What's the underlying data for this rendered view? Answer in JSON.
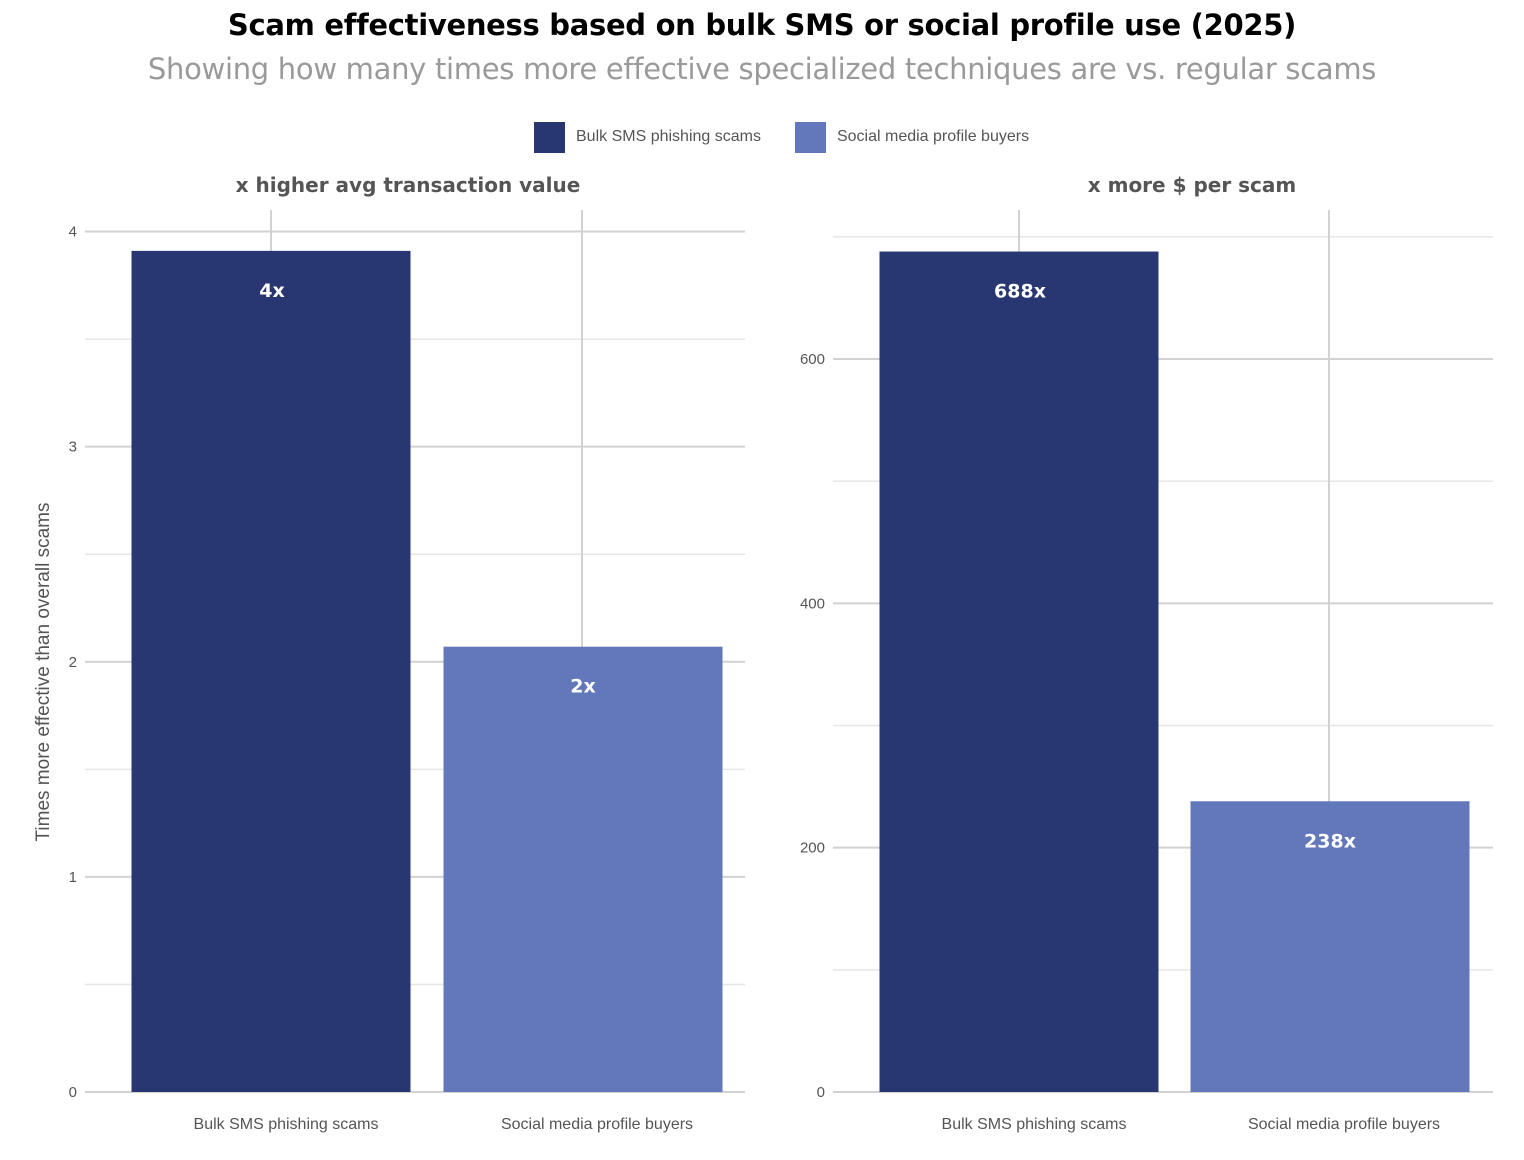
{
  "title": "Scam effectiveness based on bulk SMS or social profile use (2025)",
  "subtitle": "Showing how many times more effective specialized techniques are vs. regular scams",
  "legend": [
    {
      "label": "Bulk SMS phishing scams",
      "color": "#283772"
    },
    {
      "label": "Social media profile buyers",
      "color": "#6278bb"
    }
  ],
  "chart_data": [
    {
      "type": "bar",
      "title": "x higher avg transaction value",
      "categories": [
        "Bulk SMS phishing scams",
        "Social media profile buyers"
      ],
      "values": [
        3.91,
        2.07
      ],
      "data_labels": [
        "4x",
        "2x"
      ],
      "colors": [
        "#283772",
        "#6278bb"
      ],
      "ylabel": "Times more effective than overall scams",
      "ylim": [
        0,
        4.1
      ],
      "yticks": [
        0,
        1,
        2,
        3,
        4
      ],
      "ytick_labels": [
        "0",
        "1",
        "2",
        "3",
        "4"
      ],
      "minor_yticks": [
        0.5,
        1.5,
        2.5,
        3.5
      ]
    },
    {
      "type": "bar",
      "title": "x more $ per scam",
      "categories": [
        "Bulk SMS phishing scams",
        "Social media profile buyers"
      ],
      "values": [
        688,
        238
      ],
      "data_labels": [
        "688x",
        "238x"
      ],
      "colors": [
        "#283772",
        "#6278bb"
      ],
      "ylabel": "",
      "ylim": [
        0,
        722
      ],
      "yticks": [
        0,
        200,
        400,
        600
      ],
      "ytick_labels": [
        "0",
        "200",
        "400",
        "600"
      ],
      "minor_yticks": [
        100,
        300,
        500,
        700
      ]
    }
  ]
}
